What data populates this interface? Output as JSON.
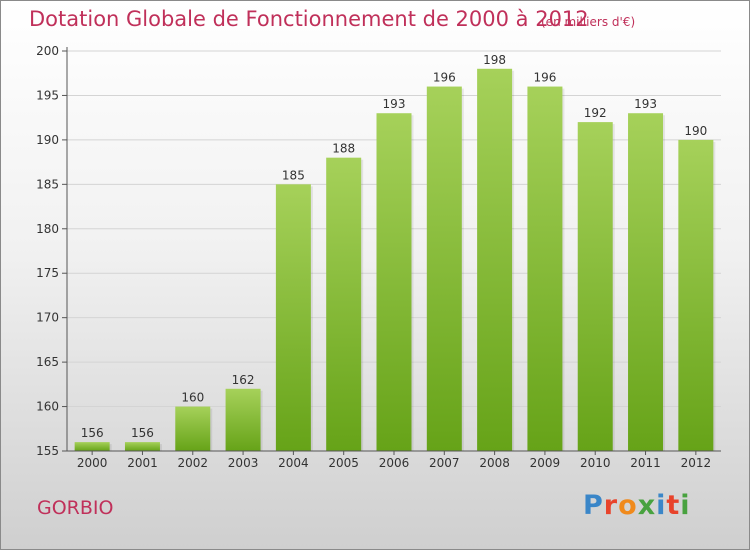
{
  "title": "Dotation Globale de Fonctionnement de 2000 à 2012",
  "unit_note": "(en milliers d'€)",
  "place": "GORBIO",
  "logo": {
    "text": "Proxiti",
    "letter_colors": [
      "#3a86c8",
      "#e8432b",
      "#f08a1c",
      "#48a23f",
      "#3a86c8",
      "#e8432b",
      "#48a23f"
    ]
  },
  "colors": {
    "title": "#c0305a",
    "bar_light": "#a6d15a",
    "bar_dark": "#66a318",
    "grid": "#d4d4d4",
    "axis": "#555555",
    "text": "#333333"
  },
  "chart_data": {
    "type": "bar",
    "title": "Dotation Globale de Fonctionnement de 2000 à 2012",
    "subtitle": "(en milliers d'€)",
    "xlabel": "",
    "ylabel": "",
    "categories": [
      "2000",
      "2001",
      "2002",
      "2003",
      "2004",
      "2005",
      "2006",
      "2007",
      "2008",
      "2009",
      "2010",
      "2011",
      "2012"
    ],
    "values": [
      156,
      156,
      160,
      162,
      185,
      188,
      193,
      196,
      198,
      196,
      192,
      193,
      190
    ],
    "ylim": [
      155,
      200
    ],
    "yticks": [
      155,
      160,
      165,
      170,
      175,
      180,
      185,
      190,
      195,
      200
    ],
    "grid": true,
    "data_labels": true
  }
}
